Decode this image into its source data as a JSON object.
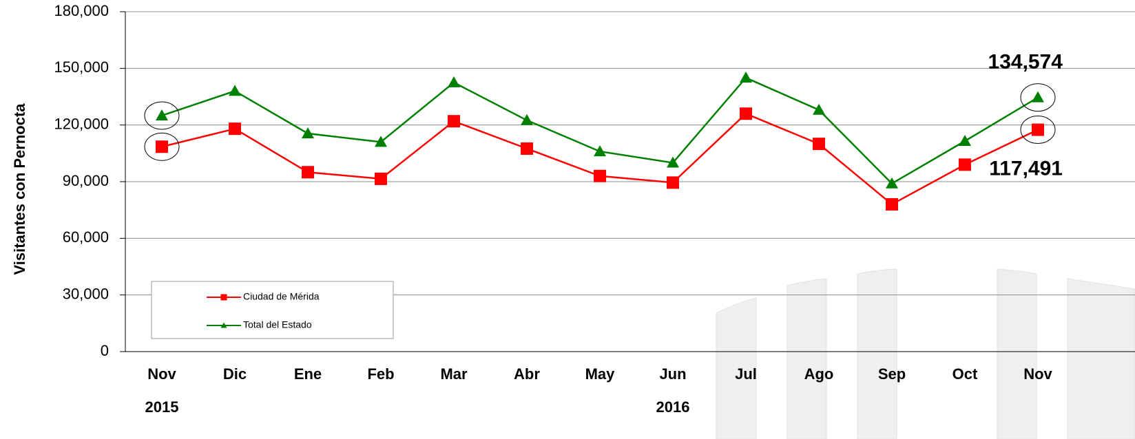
{
  "chart_data": {
    "type": "line",
    "ylabel": "Visitantes con Pernocta",
    "categories": [
      "Nov",
      "Dic",
      "Ene",
      "Feb",
      "Mar",
      "Abr",
      "May",
      "Jun",
      "Jul",
      "Ago",
      "Sep",
      "Oct",
      "Nov"
    ],
    "x_groups": [
      {
        "label": "2015",
        "start": 0
      },
      {
        "label": "2016",
        "start": 7
      }
    ],
    "series": [
      {
        "name": "Ciudad de Mérida",
        "color": "#ff0000",
        "marker": "square",
        "values": [
          108500,
          118000,
          95000,
          91500,
          122000,
          107500,
          93000,
          89500,
          126000,
          110000,
          78000,
          99000,
          117491
        ],
        "value_labels": [
          null,
          null,
          null,
          null,
          null,
          null,
          null,
          null,
          null,
          null,
          null,
          null,
          "117,491"
        ]
      },
      {
        "name": "Total del Estado",
        "color": "#008000",
        "marker": "triangle",
        "values": [
          125000,
          138000,
          115500,
          111000,
          142500,
          122500,
          106000,
          100000,
          145000,
          128000,
          89000,
          111500,
          134574
        ],
        "value_labels": [
          null,
          null,
          null,
          null,
          null,
          null,
          null,
          null,
          null,
          null,
          null,
          null,
          "134,574"
        ]
      }
    ],
    "ylim": [
      0,
      180000
    ],
    "yticks": [
      0,
      {
        "value": 30000,
        "label": "30,000"
      },
      {
        "value": 60000,
        "label": "60,000"
      },
      {
        "value": 90000,
        "label": "90,000"
      },
      {
        "value": 120000,
        "label": "120,000"
      },
      {
        "value": 150000,
        "label": "150,000"
      },
      {
        "value": 180000,
        "label": "180,000"
      }
    ],
    "grid": true
  }
}
